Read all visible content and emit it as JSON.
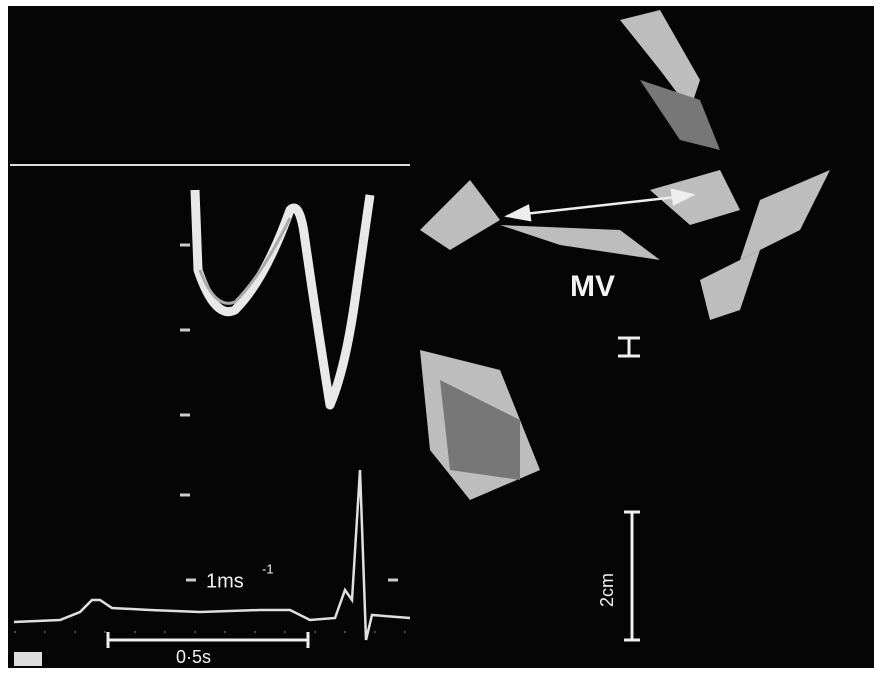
{
  "labels": {
    "valve": "MV",
    "velocity_scale": "1ms",
    "velocity_exponent": "-1",
    "time_scale": "0·5s",
    "distance_scale": "2cm"
  }
}
